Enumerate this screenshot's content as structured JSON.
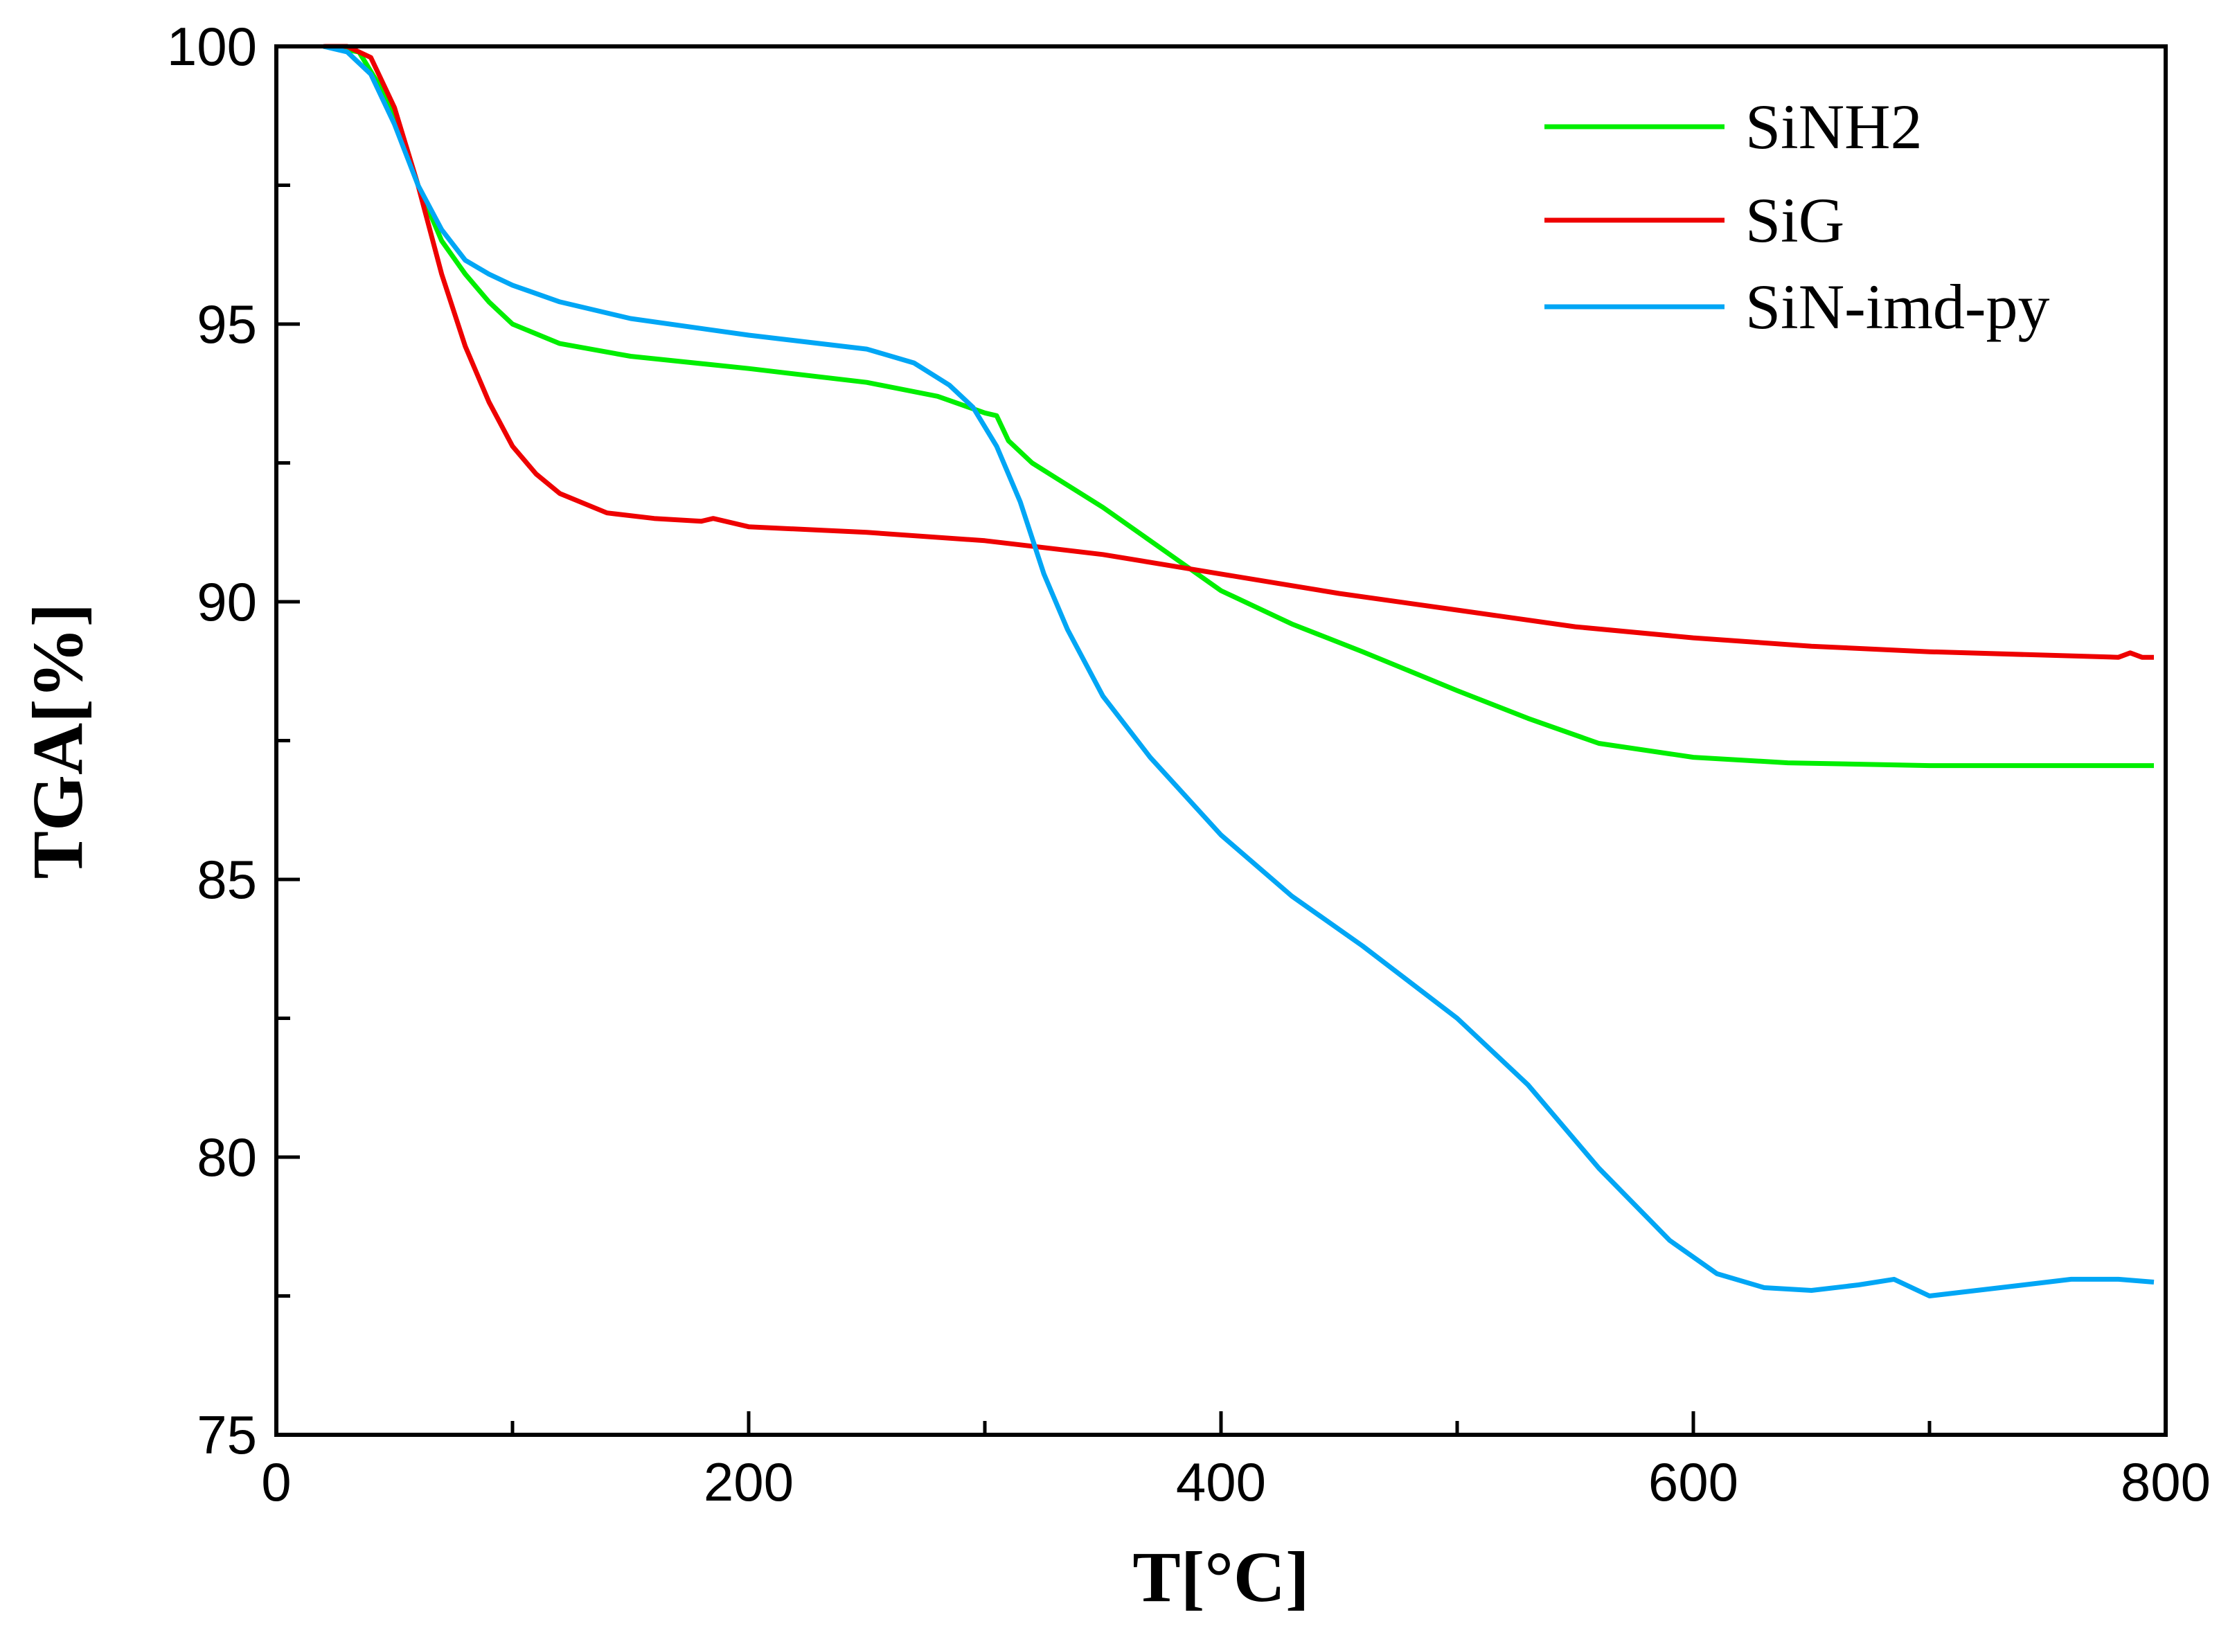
{
  "chart_data": {
    "type": "line",
    "title": "",
    "xlabel": "T[°C]",
    "ylabel": "TGA[%]",
    "xlim": [
      0,
      800
    ],
    "ylim": [
      75,
      100
    ],
    "xticks": [
      0,
      200,
      400,
      600,
      800
    ],
    "yticks": [
      75,
      80,
      85,
      90,
      95,
      100
    ],
    "grid": false,
    "legend_position": "top-right",
    "series": [
      {
        "name": "SiNH2",
        "color": "#00ee00",
        "points": [
          [
            20,
            100
          ],
          [
            35,
            99.9
          ],
          [
            45,
            99.2
          ],
          [
            55,
            98.2
          ],
          [
            60,
            97.5
          ],
          [
            70,
            96.5
          ],
          [
            80,
            95.9
          ],
          [
            90,
            95.4
          ],
          [
            100,
            95.0
          ],
          [
            120,
            94.65
          ],
          [
            150,
            94.42
          ],
          [
            200,
            94.2
          ],
          [
            250,
            93.95
          ],
          [
            280,
            93.7
          ],
          [
            300,
            93.4
          ],
          [
            305,
            93.35
          ],
          [
            310,
            92.9
          ],
          [
            320,
            92.5
          ],
          [
            350,
            91.7
          ],
          [
            380,
            90.8
          ],
          [
            400,
            90.2
          ],
          [
            430,
            89.6
          ],
          [
            460,
            89.1
          ],
          [
            500,
            88.4
          ],
          [
            530,
            87.9
          ],
          [
            560,
            87.45
          ],
          [
            600,
            87.2
          ],
          [
            640,
            87.1
          ],
          [
            700,
            87.05
          ],
          [
            795,
            87.05
          ]
        ]
      },
      {
        "name": "SiG",
        "color": "#ee0000",
        "points": [
          [
            20,
            100
          ],
          [
            30,
            100
          ],
          [
            40,
            99.8
          ],
          [
            50,
            98.9
          ],
          [
            60,
            97.5
          ],
          [
            70,
            95.9
          ],
          [
            80,
            94.6
          ],
          [
            90,
            93.6
          ],
          [
            100,
            92.8
          ],
          [
            110,
            92.3
          ],
          [
            120,
            91.95
          ],
          [
            140,
            91.6
          ],
          [
            160,
            91.5
          ],
          [
            180,
            91.45
          ],
          [
            185,
            91.5
          ],
          [
            190,
            91.45
          ],
          [
            200,
            91.35
          ],
          [
            250,
            91.25
          ],
          [
            300,
            91.1
          ],
          [
            350,
            90.85
          ],
          [
            400,
            90.5
          ],
          [
            450,
            90.15
          ],
          [
            500,
            89.85
          ],
          [
            550,
            89.55
          ],
          [
            600,
            89.35
          ],
          [
            650,
            89.2
          ],
          [
            700,
            89.1
          ],
          [
            780,
            89.0
          ],
          [
            785,
            89.08
          ],
          [
            790,
            89.0
          ],
          [
            795,
            89.0
          ]
        ]
      },
      {
        "name": "SiN-imd-py",
        "color": "#00a6f5",
        "points": [
          [
            20,
            100
          ],
          [
            30,
            99.9
          ],
          [
            40,
            99.5
          ],
          [
            50,
            98.6
          ],
          [
            60,
            97.5
          ],
          [
            70,
            96.7
          ],
          [
            80,
            96.15
          ],
          [
            90,
            95.9
          ],
          [
            100,
            95.7
          ],
          [
            120,
            95.4
          ],
          [
            150,
            95.1
          ],
          [
            200,
            94.8
          ],
          [
            250,
            94.55
          ],
          [
            270,
            94.3
          ],
          [
            285,
            93.9
          ],
          [
            295,
            93.5
          ],
          [
            305,
            92.8
          ],
          [
            315,
            91.8
          ],
          [
            325,
            90.5
          ],
          [
            335,
            89.5
          ],
          [
            350,
            88.3
          ],
          [
            370,
            87.2
          ],
          [
            400,
            85.8
          ],
          [
            430,
            84.7
          ],
          [
            460,
            83.8
          ],
          [
            500,
            82.5
          ],
          [
            530,
            81.3
          ],
          [
            560,
            79.8
          ],
          [
            590,
            78.5
          ],
          [
            610,
            77.9
          ],
          [
            630,
            77.65
          ],
          [
            650,
            77.6
          ],
          [
            670,
            77.7
          ],
          [
            685,
            77.8
          ],
          [
            700,
            77.5
          ],
          [
            720,
            77.6
          ],
          [
            740,
            77.7
          ],
          [
            760,
            77.8
          ],
          [
            780,
            77.8
          ],
          [
            795,
            77.75
          ]
        ]
      }
    ]
  }
}
